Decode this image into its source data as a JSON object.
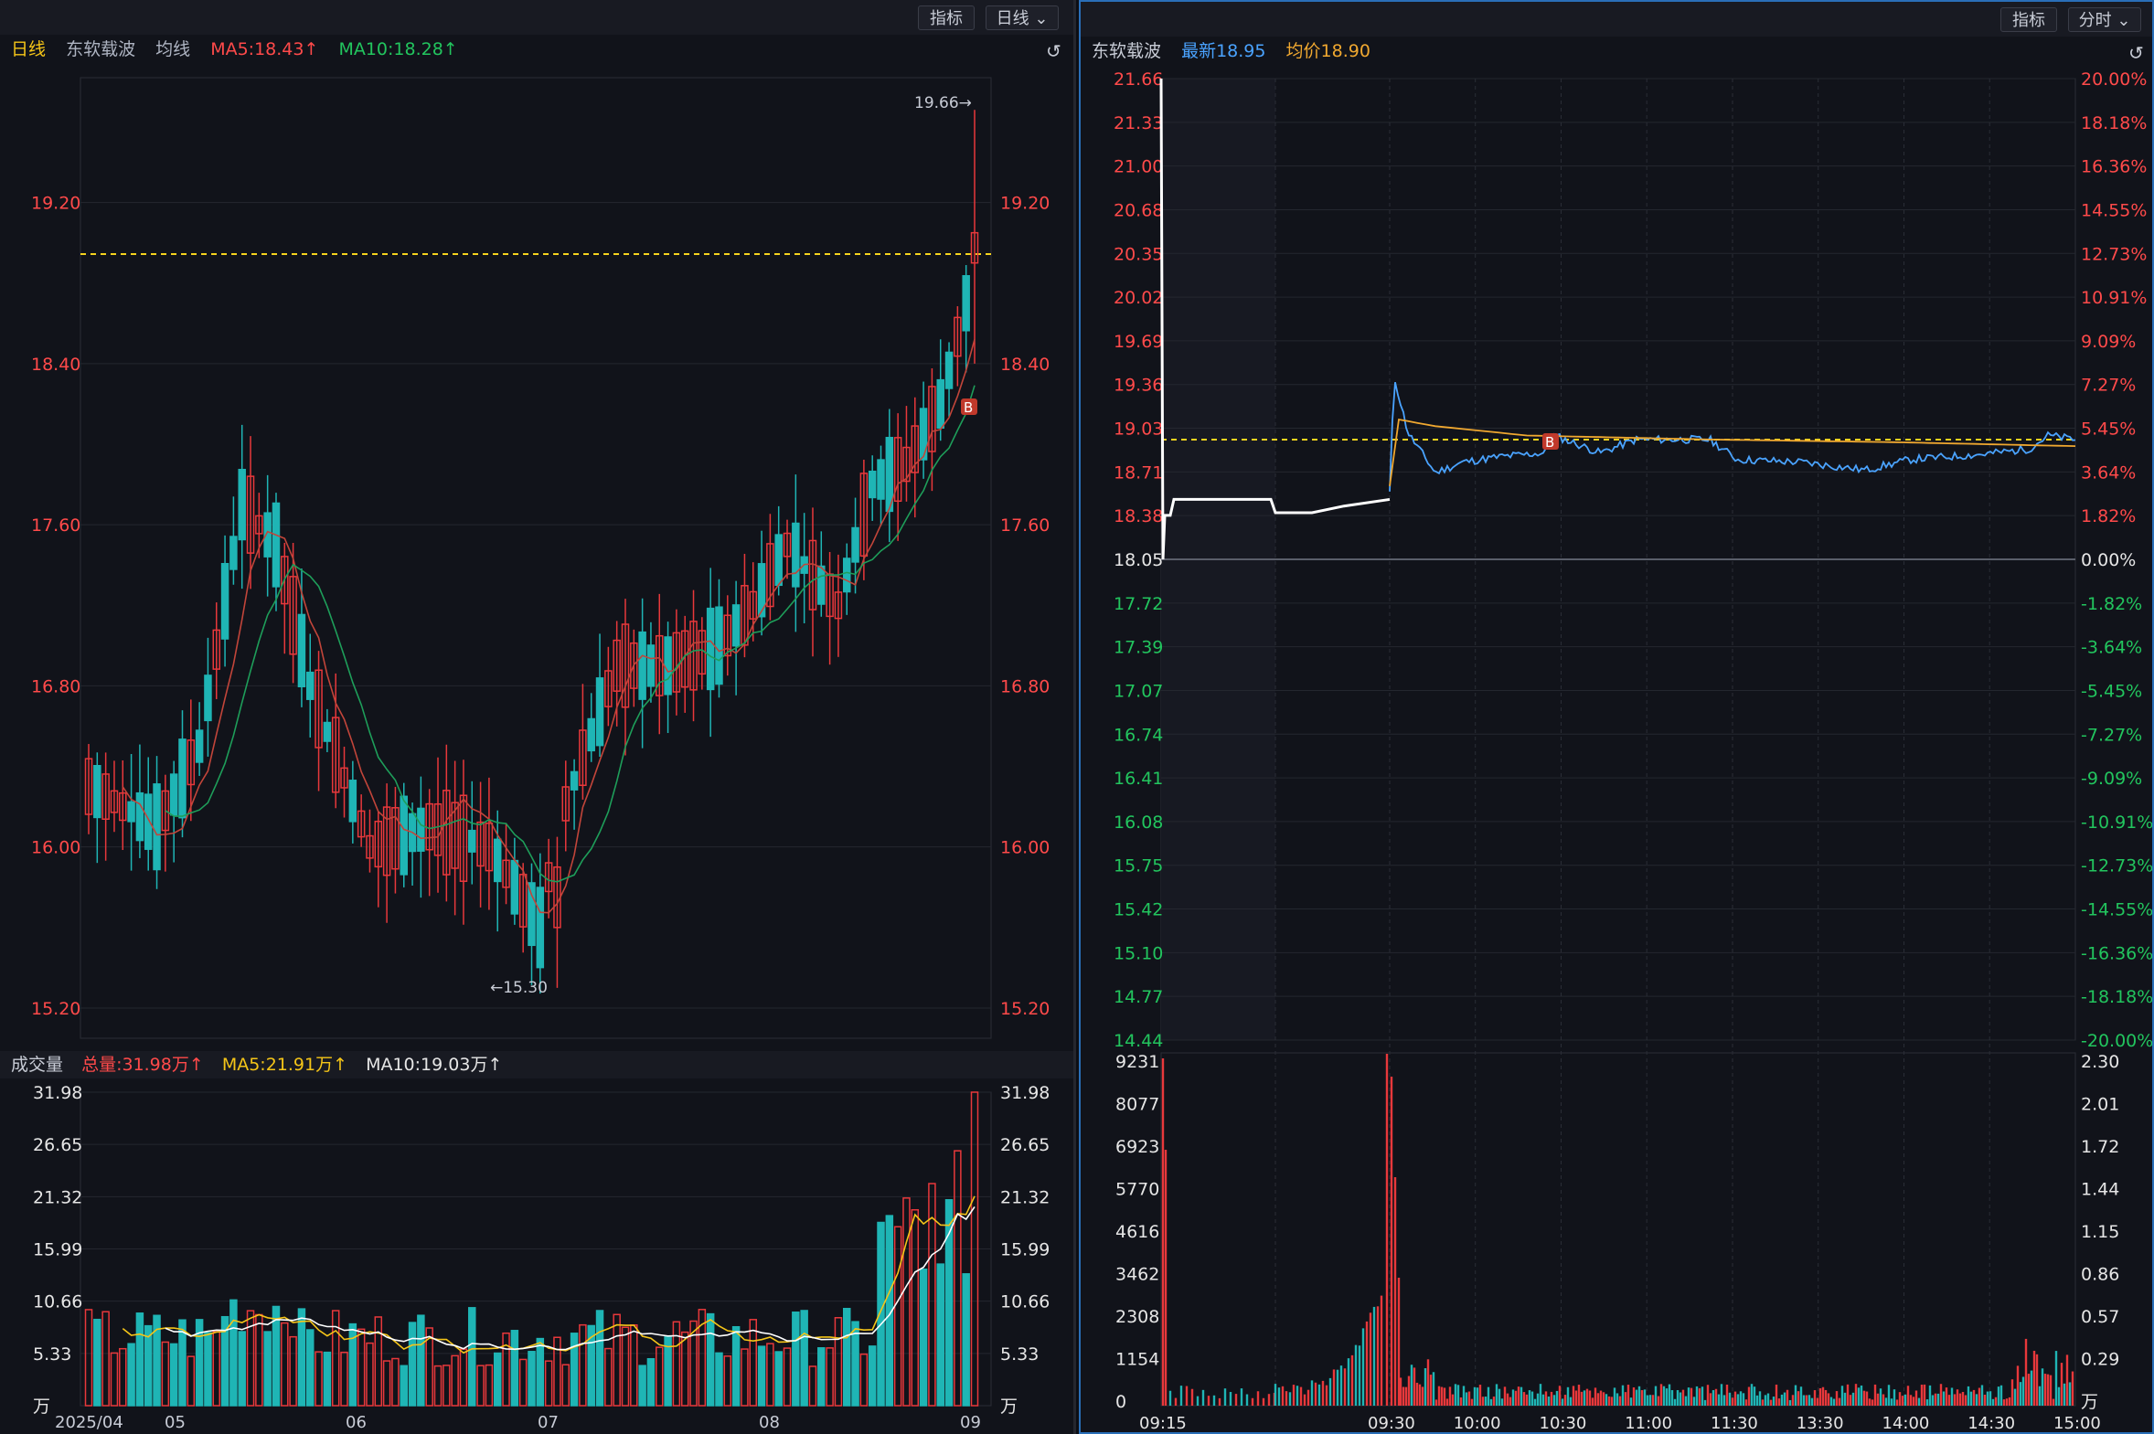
{
  "left": {
    "buttons": {
      "indicator": "指标",
      "period": "日线 ⌄"
    },
    "legend": {
      "period": "日线",
      "name": "东软载波",
      "ma_label": "均线",
      "ma5": "MA5:18.43↑",
      "ma10": "MA10:18.28↑"
    },
    "price_axis": [
      "19.20",
      "18.40",
      "17.60",
      "16.80",
      "16.00",
      "15.20"
    ],
    "annotations": {
      "high": "19.66→",
      "low": "←15.30",
      "buy_marker": "B"
    },
    "volume_legend": {
      "label": "成交量",
      "total": "总量:31.98万↑",
      "ma5": "MA5:21.91万↑",
      "ma10": "MA10:19.03万↑"
    },
    "volume_axis": [
      "31.98",
      "26.65",
      "21.32",
      "15.99",
      "10.66",
      "5.33",
      "万"
    ],
    "x_labels": [
      "2025/04",
      "05",
      "06",
      "07",
      "08",
      "09"
    ],
    "colors": {
      "up": "#e8383b",
      "down": "#1fb5b5",
      "ma5": "#f5c518",
      "ma10": "#1e9e5a",
      "dashed": "#f5d31e"
    }
  },
  "right": {
    "buttons": {
      "indicator": "指标",
      "period": "分时 ⌄"
    },
    "legend": {
      "name": "东软载波",
      "latest": "最新18.95",
      "avg": "均价18.90"
    },
    "price_axis": [
      "21.66",
      "21.33",
      "21.00",
      "20.68",
      "20.35",
      "20.02",
      "19.69",
      "19.36",
      "19.03",
      "18.71",
      "18.38",
      "18.05",
      "17.72",
      "17.39",
      "17.07",
      "16.74",
      "16.41",
      "16.08",
      "15.75",
      "15.42",
      "15.10",
      "14.77",
      "14.44"
    ],
    "pct_axis": [
      "20.00%",
      "18.18%",
      "16.36%",
      "14.55%",
      "12.73%",
      "10.91%",
      "9.09%",
      "7.27%",
      "5.45%",
      "3.64%",
      "1.82%",
      "0.00%",
      "-1.82%",
      "-3.64%",
      "-5.45%",
      "-7.27%",
      "-9.09%",
      "-10.91%",
      "-12.73%",
      "-14.55%",
      "-16.36%",
      "-18.18%",
      "-20.00%"
    ],
    "volume_axis_left": [
      "9231",
      "8077",
      "6923",
      "5770",
      "4616",
      "3462",
      "2308",
      "1154",
      "0"
    ],
    "volume_axis_right": [
      "2.30",
      "2.01",
      "1.72",
      "1.44",
      "1.15",
      "0.86",
      "0.57",
      "0.29",
      "万"
    ],
    "x_labels": [
      "09:15",
      "09:30",
      "10:00",
      "10:30",
      "11:00",
      "11:30",
      "13:30",
      "14:00",
      "14:30",
      "15:00"
    ],
    "buy_marker": "B",
    "colors": {
      "price": "#4aa3ff",
      "avg": "#f0a830",
      "up": "#e8383b",
      "down": "#1fb5b5",
      "axis_up": "#ff4a4a",
      "axis_down": "#22c55e"
    }
  }
}
